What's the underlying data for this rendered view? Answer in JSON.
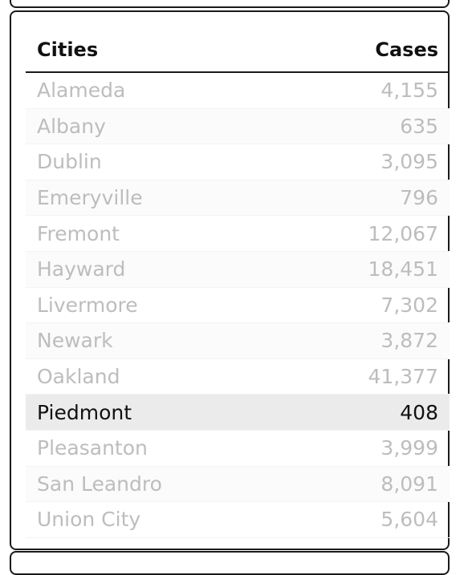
{
  "table": {
    "headers": {
      "city": "Cities",
      "cases": "Cases"
    },
    "rows": [
      {
        "city": "Alameda",
        "cases": "4,155",
        "selected": false
      },
      {
        "city": "Albany",
        "cases": "635",
        "selected": false
      },
      {
        "city": "Dublin",
        "cases": "3,095",
        "selected": false
      },
      {
        "city": "Emeryville",
        "cases": "796",
        "selected": false
      },
      {
        "city": "Fremont",
        "cases": "12,067",
        "selected": false
      },
      {
        "city": "Hayward",
        "cases": "18,451",
        "selected": false
      },
      {
        "city": "Livermore",
        "cases": "7,302",
        "selected": false
      },
      {
        "city": "Newark",
        "cases": "3,872",
        "selected": false
      },
      {
        "city": "Oakland",
        "cases": "41,377",
        "selected": false
      },
      {
        "city": "Piedmont",
        "cases": "408",
        "selected": true
      },
      {
        "city": "Pleasanton",
        "cases": "3,999",
        "selected": false
      },
      {
        "city": "San Leandro",
        "cases": "8,091",
        "selected": false
      },
      {
        "city": "Union City",
        "cases": "5,604",
        "selected": false
      }
    ]
  }
}
